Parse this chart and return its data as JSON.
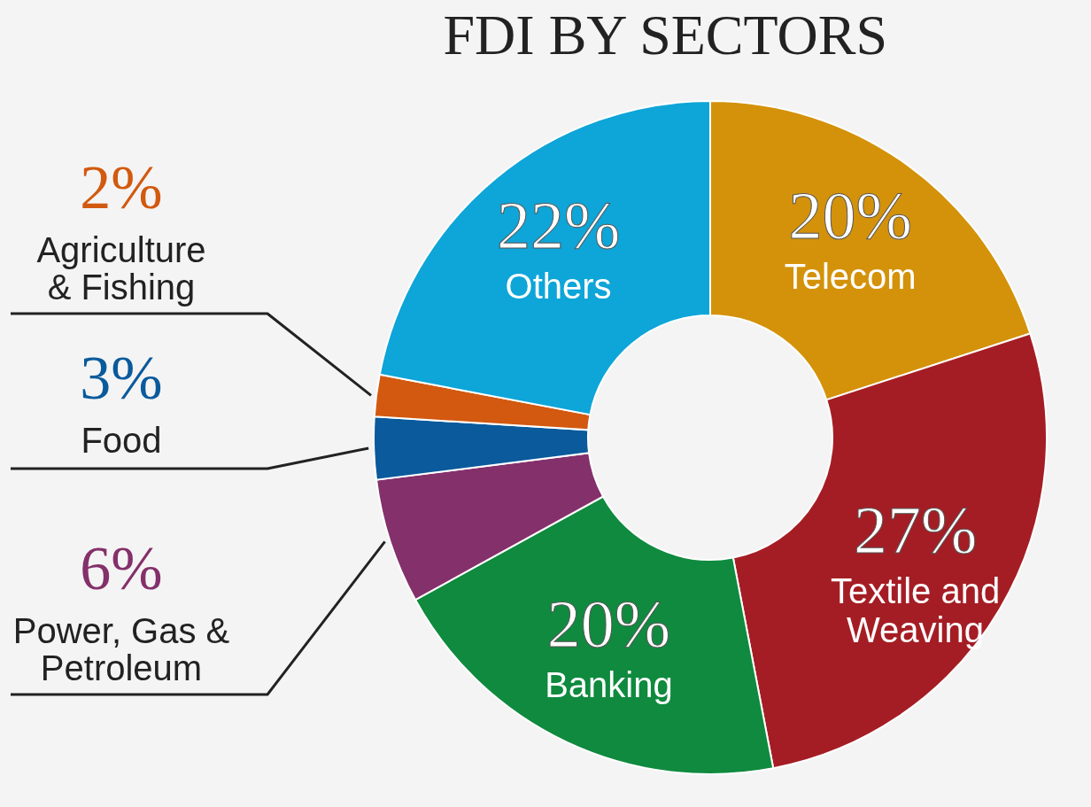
{
  "chart_data": {
    "type": "donut",
    "title": "FDI BY SECTORS",
    "categories": [
      "Telecom",
      "Textile and Weaving",
      "Banking",
      "Power, Gas & Petroleum",
      "Food",
      "Agriculture & Fishing",
      "Others"
    ],
    "values": [
      20,
      27,
      20,
      6,
      3,
      2,
      22
    ],
    "value_labels": [
      "20%",
      "27%",
      "20%",
      "6%",
      "3%",
      "2%",
      "22%"
    ],
    "colors": [
      "#d4920a",
      "#a51d24",
      "#0f8a3e",
      "#84306a",
      "#0a5a9c",
      "#d2590f",
      "#0ea5d8"
    ]
  }
}
